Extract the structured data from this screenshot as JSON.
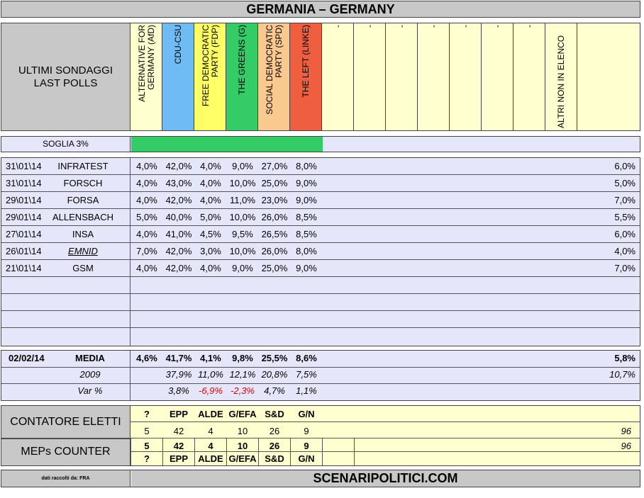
{
  "title": "GERMANIA – GERMANY",
  "header_label": [
    "ULTIMI SONDAGGI",
    "LAST POLLS"
  ],
  "parties": [
    {
      "name": [
        "ALTERNATIVE FOR",
        "GERMANY (AfD)"
      ],
      "color": "#ffffd0"
    },
    {
      "name": [
        "CDU-CSU"
      ],
      "color": "#6fbcf5"
    },
    {
      "name": [
        "FREE DEMOCRATIC",
        "PARTY (FDP)"
      ],
      "color": "#ffff66"
    },
    {
      "name": [
        "THE GREENS (G)"
      ],
      "color": "#33cc66"
    },
    {
      "name": [
        "SOCIAL DEMOCRATIC",
        "PARTY (SPD)"
      ],
      "color": "#f9c98f"
    },
    {
      "name": [
        "THE LEFT (LINKE)"
      ],
      "color": "#ee5e3f"
    },
    {
      "name": [
        "-"
      ],
      "color": "#ffffd0"
    },
    {
      "name": [
        "-"
      ],
      "color": "#ffffd0"
    },
    {
      "name": [
        "-"
      ],
      "color": "#ffffd0"
    },
    {
      "name": [
        "-"
      ],
      "color": "#ffffd0"
    },
    {
      "name": [
        "-"
      ],
      "color": "#ffffd0"
    },
    {
      "name": [
        "-"
      ],
      "color": "#ffffd0"
    },
    {
      "name": [
        "-"
      ],
      "color": "#ffffd0"
    },
    {
      "name": [
        "ALTRI NON IN ELENCO"
      ],
      "color": "#ffffd0"
    }
  ],
  "threshold": {
    "label": "SOGLIA 3%",
    "bar_color": "#33cc66",
    "parties_above": 6
  },
  "polls": [
    {
      "date": "31\\01\\14",
      "institute": "INFRATEST",
      "values": [
        "4,0%",
        "42,0%",
        "4,0%",
        "9,0%",
        "27,0%",
        "8,0%"
      ],
      "other": "6,0%"
    },
    {
      "date": "31\\01\\14",
      "institute": "FORSCH",
      "values": [
        "4,0%",
        "43,0%",
        "4,0%",
        "10,0%",
        "25,0%",
        "9,0%"
      ],
      "other": "5,0%"
    },
    {
      "date": "29\\01\\14",
      "institute": "FORSA",
      "values": [
        "4,0%",
        "42,0%",
        "4,0%",
        "11,0%",
        "23,0%",
        "9,0%"
      ],
      "other": "7,0%"
    },
    {
      "date": "29\\01\\14",
      "institute": "ALLENSBACH",
      "values": [
        "5,0%",
        "40,0%",
        "5,0%",
        "10,0%",
        "26,0%",
        "8,5%"
      ],
      "other": "5,5%"
    },
    {
      "date": "27\\01\\14",
      "institute": "INSA",
      "values": [
        "4,0%",
        "41,0%",
        "4,5%",
        "9,5%",
        "26,5%",
        "8,5%"
      ],
      "other": "6,0%"
    },
    {
      "date": "26\\01\\14",
      "institute": "EMNID",
      "values": [
        "7,0%",
        "42,0%",
        "3,0%",
        "10,0%",
        "26,0%",
        "8,0%"
      ],
      "other": "4,0%"
    },
    {
      "date": "21\\01\\14",
      "institute": "GSM",
      "values": [
        "4,0%",
        "42,0%",
        "4,0%",
        "9,0%",
        "25,0%",
        "9,0%"
      ],
      "other": "7,0%"
    }
  ],
  "summary": {
    "media": {
      "date": "02/02/14",
      "label": "MEDIA",
      "values": [
        "4,6%",
        "41,7%",
        "4,1%",
        "9,8%",
        "25,5%",
        "8,6%"
      ],
      "other": "5,8%"
    },
    "y2009": {
      "label": "2009",
      "values": [
        "",
        "37,9%",
        "11,0%",
        "12,1%",
        "20,8%",
        "7,5%"
      ],
      "other": "10,7%"
    },
    "var": {
      "label": "Var %",
      "values": [
        "",
        "3,8%",
        "-6,9%",
        "-2,3%",
        "4,7%",
        "1,1%"
      ],
      "other": ""
    }
  },
  "contatore": {
    "label": "CONTATORE ELETTI",
    "groups": [
      "?",
      "EPP",
      "ALDE",
      "G/EFA",
      "S&D",
      "G/N"
    ],
    "seats": [
      "5",
      "42",
      "4",
      "10",
      "26",
      "9"
    ],
    "total": "96"
  },
  "meps": {
    "label": "MEPs COUNTER",
    "seats": [
      "5",
      "42",
      "4",
      "10",
      "26",
      "9"
    ],
    "groups": [
      "?",
      "EPP",
      "ALDE",
      "G/EFA",
      "S&D",
      "G/N"
    ],
    "total": "96"
  },
  "footer": {
    "source": "dati raccolti da: FRA",
    "site": "SCENARIPOLITICI.COM"
  }
}
